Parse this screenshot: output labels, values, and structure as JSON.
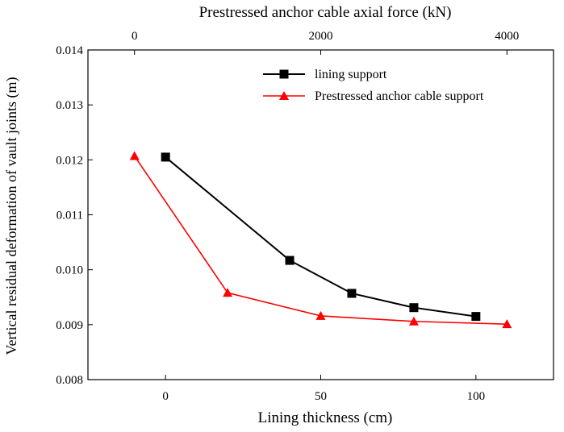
{
  "chart_data": {
    "type": "line",
    "title": "",
    "xlabel": "Lining thickness (cm)",
    "x2label": "Prestressed anchor cable axial force (kN)",
    "ylabel": "Vertical residual deformation of vault joints (m)",
    "xlim": [
      -25,
      125
    ],
    "x2lim": [
      -500,
      4500
    ],
    "ylim": [
      0.008,
      0.014
    ],
    "x_ticks": [
      0,
      50,
      100
    ],
    "x_tick_labels": [
      "0",
      "50",
      "100"
    ],
    "x2_ticks": [
      0,
      2000,
      4000
    ],
    "x2_tick_labels": [
      "0",
      "2000",
      "4000"
    ],
    "y_ticks": [
      0.008,
      0.009,
      0.01,
      0.011,
      0.012,
      0.013,
      0.014
    ],
    "y_tick_labels": [
      "0.008",
      "0.009",
      "0.010",
      "0.011",
      "0.012",
      "0.013",
      "0.014"
    ],
    "grid": false,
    "legend_position": "top-right",
    "series": [
      {
        "name": "lining support",
        "axis": "bottom",
        "marker": "square",
        "color": "#000000",
        "x": [
          0,
          40,
          60,
          80,
          100
        ],
        "y": [
          0.01205,
          0.01017,
          0.00957,
          0.00931,
          0.00915
        ]
      },
      {
        "name": "Prestressed anchor cable support",
        "axis": "top",
        "marker": "triangle",
        "color": "#ff0000",
        "x": [
          0,
          1000,
          2000,
          3000,
          4000
        ],
        "y": [
          0.01207,
          0.00958,
          0.00916,
          0.00906,
          0.00901
        ]
      }
    ]
  }
}
